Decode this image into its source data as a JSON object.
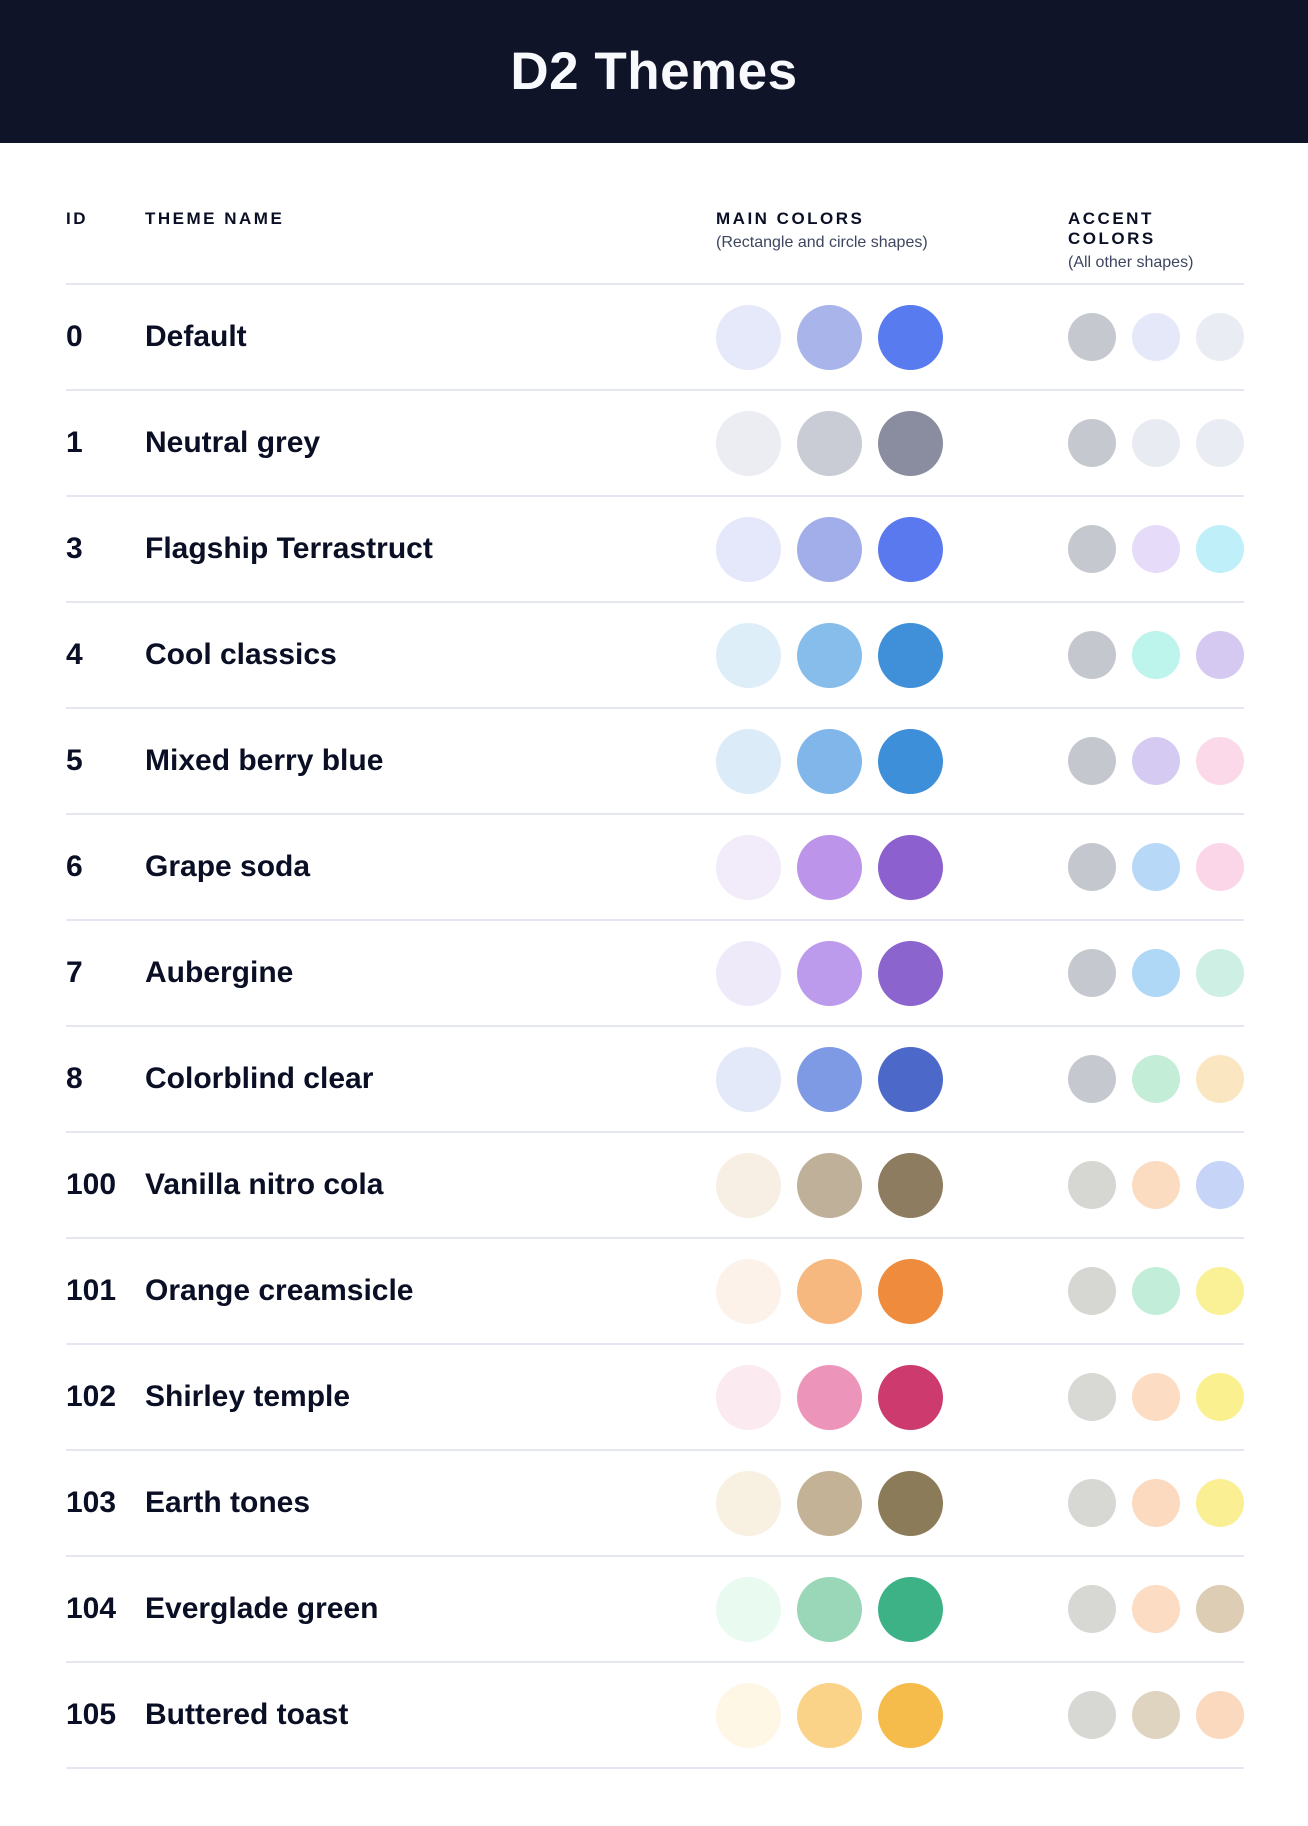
{
  "header": {
    "title": "D2 Themes"
  },
  "columns": {
    "id_label": "ID",
    "theme_name_label": "THEME NAME",
    "main_colors_label": "MAIN COLORS",
    "main_colors_sub": "(Rectangle and circle shapes)",
    "accent_colors_label": "ACCENT COLORS",
    "accent_colors_sub": "(All other shapes)"
  },
  "themes": [
    {
      "id": "0",
      "name": "Default",
      "main": [
        "#E6E9F9",
        "#A9B5EA",
        "#587CEF"
      ],
      "accent": [
        "#C6C8D0",
        "#E4E8F8",
        "#EAECF4"
      ]
    },
    {
      "id": "1",
      "name": "Neutral grey",
      "main": [
        "#EBEDF3",
        "#C9CCD5",
        "#8A8DA0"
      ],
      "accent": [
        "#C6C8D0",
        "#E9EBF2",
        "#EAECF4"
      ]
    },
    {
      "id": "3",
      "name": "Flagship Terrastruct",
      "main": [
        "#E4E8FA",
        "#A2AEE9",
        "#5B79EE"
      ],
      "accent": [
        "#C6C8D0",
        "#E6DCF9",
        "#BFF0FA"
      ]
    },
    {
      "id": "4",
      "name": "Cool classics",
      "main": [
        "#DDEEF9",
        "#86BDEB",
        "#3F90D8"
      ],
      "accent": [
        "#C5C7CF",
        "#BDF4EB",
        "#D5C9F2"
      ]
    },
    {
      "id": "5",
      "name": "Mixed berry blue",
      "main": [
        "#DCEBF8",
        "#80B6EA",
        "#3E8FD9"
      ],
      "accent": [
        "#C5C7CF",
        "#D5CBF2",
        "#FBD9E8"
      ]
    },
    {
      "id": "6",
      "name": "Grape soda",
      "main": [
        "#F1EBFA",
        "#BC95EA",
        "#8C60CF"
      ],
      "accent": [
        "#C5C7CF",
        "#B7D9F7",
        "#FBD6E9"
      ]
    },
    {
      "id": "7",
      "name": "Aubergine",
      "main": [
        "#EFEAFA",
        "#BC9BEC",
        "#8B64CE"
      ],
      "accent": [
        "#C6C8D0",
        "#AFD7F6",
        "#CDEFE4"
      ]
    },
    {
      "id": "8",
      "name": "Colorblind clear",
      "main": [
        "#E3E9F9",
        "#7E9AE4",
        "#4C69C9"
      ],
      "accent": [
        "#C6C8D0",
        "#C3EDD7",
        "#FAE7C1"
      ]
    },
    {
      "id": "100",
      "name": "Vanilla nitro cola",
      "main": [
        "#F7EFE3",
        "#BFB199",
        "#8D7C5F"
      ],
      "accent": [
        "#D6D6D3",
        "#FCDCC1",
        "#C5D4F7"
      ]
    },
    {
      "id": "101",
      "name": "Orange creamsicle",
      "main": [
        "#FDF2E9",
        "#F7B87F",
        "#EE8B3D"
      ],
      "accent": [
        "#D6D6D3",
        "#C2EED9",
        "#FAF096"
      ]
    },
    {
      "id": "102",
      "name": "Shirley temple",
      "main": [
        "#FCEAF1",
        "#EC94B9",
        "#CD3A6E"
      ],
      "accent": [
        "#D8D8D5",
        "#FCDCC2",
        "#FBF08F"
      ]
    },
    {
      "id": "103",
      "name": "Earth tones",
      "main": [
        "#F8F0E1",
        "#C3B295",
        "#8C7B58"
      ],
      "accent": [
        "#D7D7D4",
        "#FCDABF",
        "#FAEF92"
      ]
    },
    {
      "id": "104",
      "name": "Everglade green",
      "main": [
        "#E9FAF1",
        "#9AD6B8",
        "#3DB286"
      ],
      "accent": [
        "#D7D7D4",
        "#FCDCC2",
        "#DCCDB4"
      ]
    },
    {
      "id": "105",
      "name": "Buttered toast",
      "main": [
        "#FEF7E5",
        "#FBD388",
        "#F6BC4B"
      ],
      "accent": [
        "#D7D7D4",
        "#DFD4C0",
        "#FBD9BF"
      ]
    }
  ],
  "colors": {
    "header_bg": "#101429",
    "header_text": "#F8F9FC",
    "text": "#0A0F25",
    "subtext": "#3E465F",
    "divider": "#E4E7EF"
  }
}
